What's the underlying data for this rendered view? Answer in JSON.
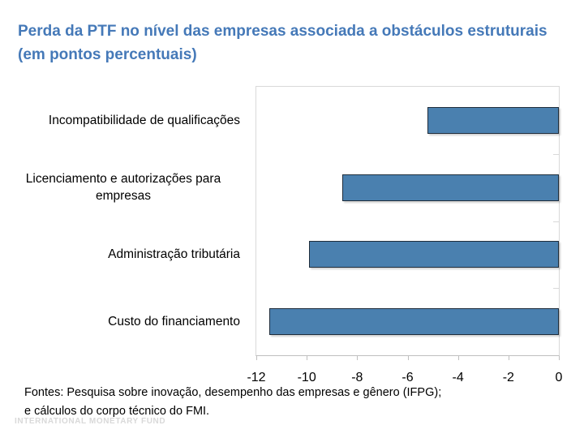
{
  "slide": {
    "title": "Perda da PTF no nível das empresas associada a obstáculos estruturais",
    "subtitle": "(em pontos percentuais)",
    "title_color": "#4579B8"
  },
  "chart_data": {
    "type": "bar",
    "orientation": "horizontal",
    "title": "Perda da PTF no nível das empresas associada a obstáculos estruturais (em pontos percentuais)",
    "categories": [
      "Incompatibilidade de qualificações",
      "Licenciamento e autorizações para empresas",
      "Administração tributária",
      "Custo do financiamento"
    ],
    "values": [
      -5.2,
      -8.6,
      -9.9,
      -11.5
    ],
    "xlabel": "",
    "ylabel": "",
    "xlim": [
      -12,
      0
    ],
    "xticks": [
      -12,
      -10,
      -8,
      -6,
      -4,
      -2,
      0
    ],
    "grid": false,
    "legend": false,
    "bar_color": "#4A80AF",
    "bar_border_color": "#1F2D3B",
    "plot_border_color": "#D9D9D9",
    "axis_line_color": "#BFBFBF"
  },
  "footer": {
    "line1": "Fontes: Pesquisa sobre inovação, desempenho das empresas e gênero (IFPG);",
    "line2": "e cálculos do corpo técnico do FMI."
  },
  "watermark": "INTERNATIONAL MONETARY FUND"
}
